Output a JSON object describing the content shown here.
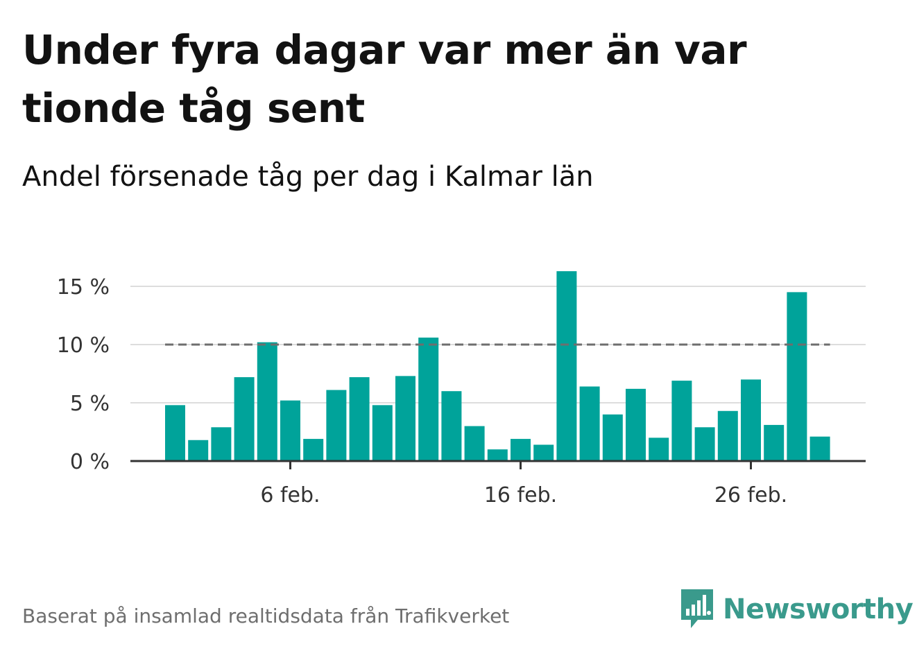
{
  "header": {
    "title": "Under fyra dagar var mer än var tionde tåg sent",
    "subtitle": "Andel försenade tåg per dag i Kalmar län"
  },
  "footer": {
    "source": "Baserat på insamlad realtidsdata från Trafikverket",
    "brand": "Newsworthy",
    "brand_icon": "bar-chart-speech-bubble-icon"
  },
  "colors": {
    "bar": "#00a39a",
    "reference_line": "#6e6e6e",
    "grid": "#dddddd",
    "axis": "#333333",
    "brand": "#3a9a8c"
  },
  "chart_data": {
    "type": "bar",
    "xlabel": "",
    "ylabel": "",
    "x": [
      "1 feb.",
      "2 feb.",
      "3 feb.",
      "4 feb.",
      "5 feb.",
      "6 feb.",
      "7 feb.",
      "8 feb.",
      "9 feb.",
      "10 feb.",
      "11 feb.",
      "12 feb.",
      "13 feb.",
      "14 feb.",
      "15 feb.",
      "16 feb.",
      "17 feb.",
      "18 feb.",
      "19 feb.",
      "20 feb.",
      "21 feb.",
      "22 feb.",
      "23 feb.",
      "24 feb.",
      "25 feb.",
      "26 feb.",
      "27 feb.",
      "28 feb.",
      "29 feb."
    ],
    "values": [
      4.8,
      1.8,
      2.9,
      7.2,
      10.2,
      5.2,
      1.9,
      6.1,
      7.2,
      4.8,
      7.3,
      10.6,
      6.0,
      3.0,
      1.0,
      1.9,
      1.4,
      16.3,
      6.4,
      4.0,
      6.2,
      2.0,
      6.9,
      2.9,
      4.3,
      7.0,
      3.1,
      14.5,
      2.1
    ],
    "x_ticks": [
      {
        "index": 5,
        "label": "6 feb."
      },
      {
        "index": 15,
        "label": "16 feb."
      },
      {
        "index": 25,
        "label": "26 feb."
      }
    ],
    "y_ticks": [
      {
        "value": 0,
        "label": "0 %"
      },
      {
        "value": 5,
        "label": "5 %"
      },
      {
        "value": 10,
        "label": "10 %"
      },
      {
        "value": 15,
        "label": "15 %"
      }
    ],
    "ylim": [
      0,
      16.3
    ],
    "reference_line": 10,
    "grid": true,
    "legend": "none"
  }
}
